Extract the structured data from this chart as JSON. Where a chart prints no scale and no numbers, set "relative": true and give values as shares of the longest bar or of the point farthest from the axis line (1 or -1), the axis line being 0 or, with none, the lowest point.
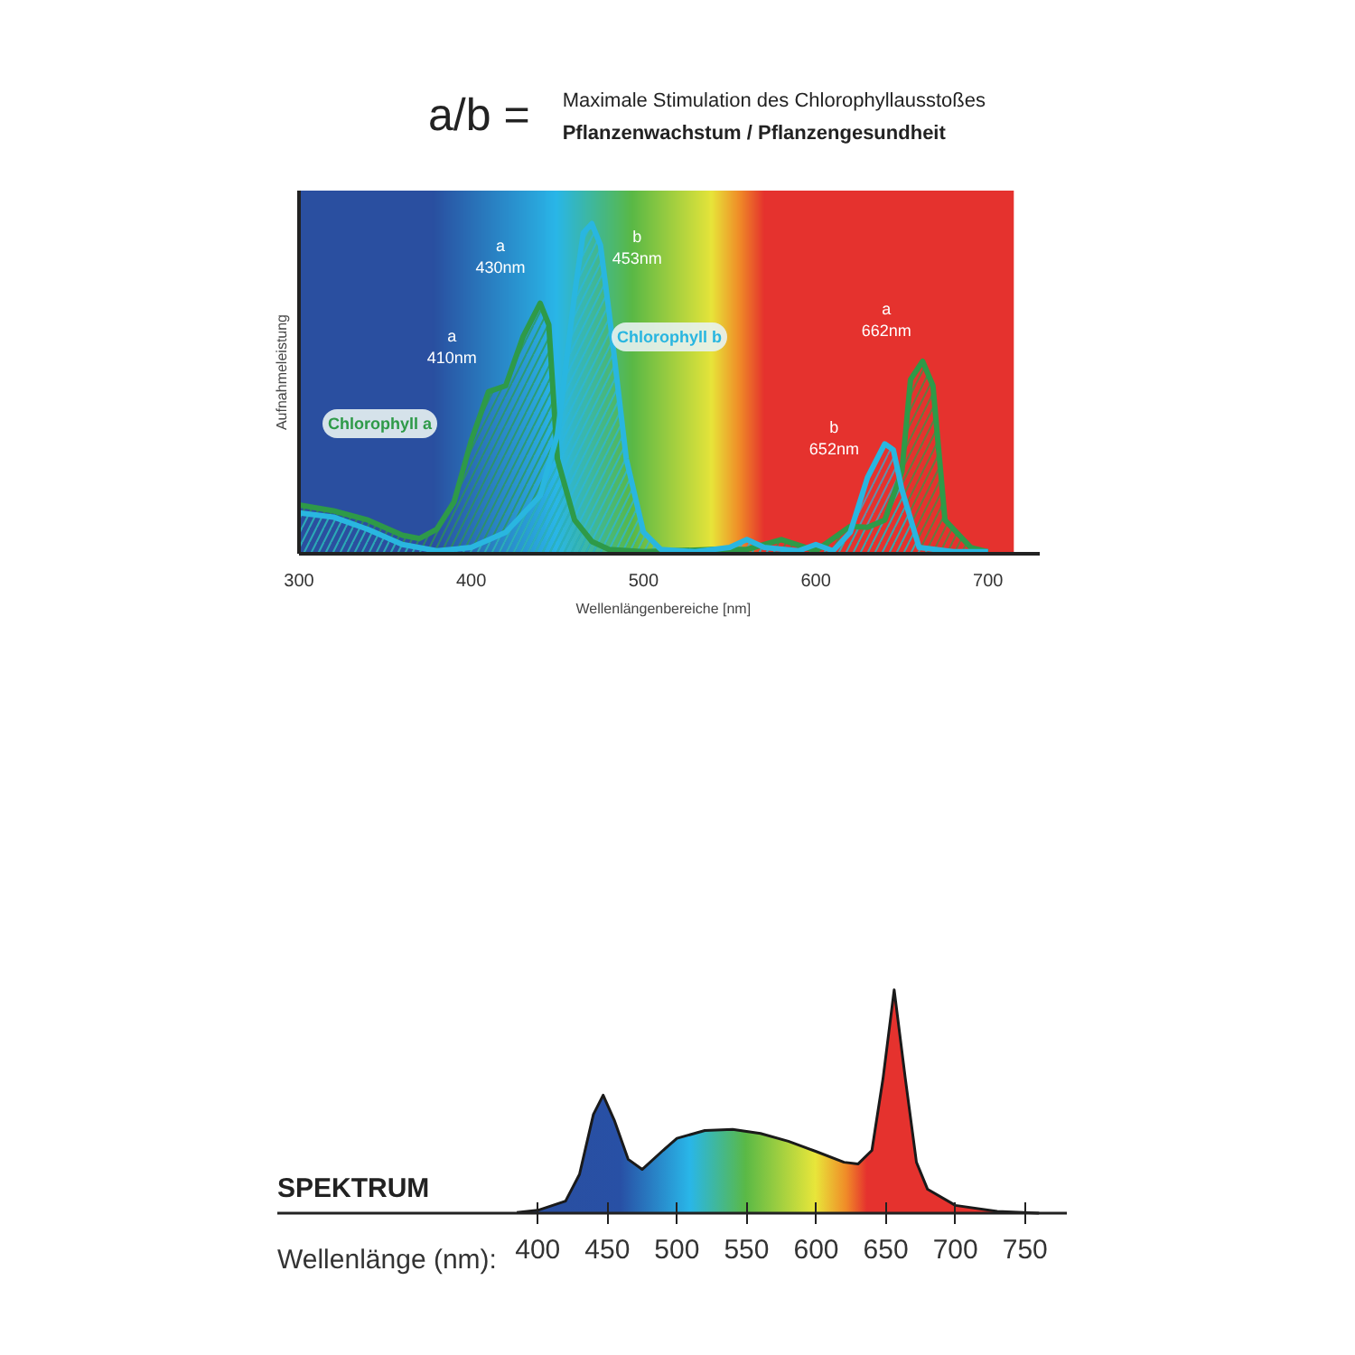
{
  "chart_data": [
    {
      "type": "area",
      "title": "a/b =",
      "subtitle": "Maximale  Stimulation des Chlorophyllausstoßes\nPflanzenwachstum / Pflanzengesundheit",
      "xlabel": "Wellenlängenbereiche    [nm]",
      "ylabel": "Aufnahmeleistung",
      "relative": true,
      "xlim": [
        300,
        730
      ],
      "xticks": [
        300,
        400,
        500,
        600,
        700
      ],
      "grid": false,
      "legend": false,
      "series": [
        {
          "name": "Chlorophyll a",
          "color": "#2e9a48",
          "x": [
            300,
            320,
            340,
            360,
            370,
            380,
            390,
            400,
            410,
            420,
            430,
            440,
            445,
            450,
            460,
            470,
            480,
            500,
            540,
            560,
            580,
            600,
            620,
            630,
            640,
            650,
            655,
            662,
            668,
            675,
            690,
            700
          ],
          "values": [
            0.148,
            0.13,
            0.102,
            0.056,
            0.046,
            0.074,
            0.157,
            0.343,
            0.491,
            0.509,
            0.657,
            0.759,
            0.694,
            0.287,
            0.102,
            0.037,
            0.013,
            0.006,
            0.013,
            0.013,
            0.043,
            0.009,
            0.083,
            0.08,
            0.102,
            0.25,
            0.528,
            0.583,
            0.509,
            0.102,
            0.019,
            0.006
          ]
        },
        {
          "name": "Chlorophyll b",
          "color": "#29b6e0",
          "x": [
            300,
            320,
            340,
            360,
            380,
            400,
            420,
            440,
            450,
            460,
            465,
            470,
            475,
            480,
            490,
            500,
            510,
            530,
            550,
            560,
            570,
            590,
            600,
            610,
            620,
            630,
            640,
            645,
            650,
            660,
            680,
            700
          ],
          "values": [
            0.124,
            0.111,
            0.074,
            0.028,
            0.009,
            0.019,
            0.065,
            0.176,
            0.361,
            0.787,
            0.972,
            1.0,
            0.935,
            0.731,
            0.287,
            0.065,
            0.013,
            0.006,
            0.019,
            0.043,
            0.019,
            0.009,
            0.028,
            0.009,
            0.065,
            0.231,
            0.333,
            0.315,
            0.194,
            0.019,
            0.006,
            0.006
          ]
        }
      ],
      "annotations": [
        {
          "text": "a\n410nm",
          "x": 415,
          "y": 0.5
        },
        {
          "text": "a\n430nm",
          "x": 440,
          "y": 0.759
        },
        {
          "text": "b\n453nm",
          "x": 470,
          "y": 1.0
        },
        {
          "text": "a\n662nm",
          "x": 662,
          "y": 0.583
        },
        {
          "text": "b\n652nm",
          "x": 640,
          "y": 0.333
        }
      ]
    },
    {
      "type": "area",
      "title": "SPEKTRUM",
      "xlabel": "Wellenlänge (nm):",
      "relative": true,
      "xlim": [
        213,
        780
      ],
      "xticks": [
        400,
        450,
        500,
        550,
        600,
        650,
        700,
        750
      ],
      "grid": false,
      "legend": false,
      "series": [
        {
          "color": "#1a1a1a",
          "x": [
            385,
            400,
            420,
            430,
            440,
            447,
            455,
            465,
            475,
            490,
            500,
            520,
            540,
            560,
            580,
            600,
            620,
            630,
            640,
            648,
            656,
            664,
            672,
            680,
            700,
            730,
            760
          ],
          "values": [
            0.003,
            0.013,
            0.054,
            0.174,
            0.442,
            0.528,
            0.416,
            0.241,
            0.196,
            0.281,
            0.335,
            0.37,
            0.375,
            0.357,
            0.322,
            0.276,
            0.228,
            0.22,
            0.281,
            0.603,
            1.0,
            0.603,
            0.228,
            0.107,
            0.035,
            0.008,
            0.0
          ]
        }
      ]
    }
  ]
}
